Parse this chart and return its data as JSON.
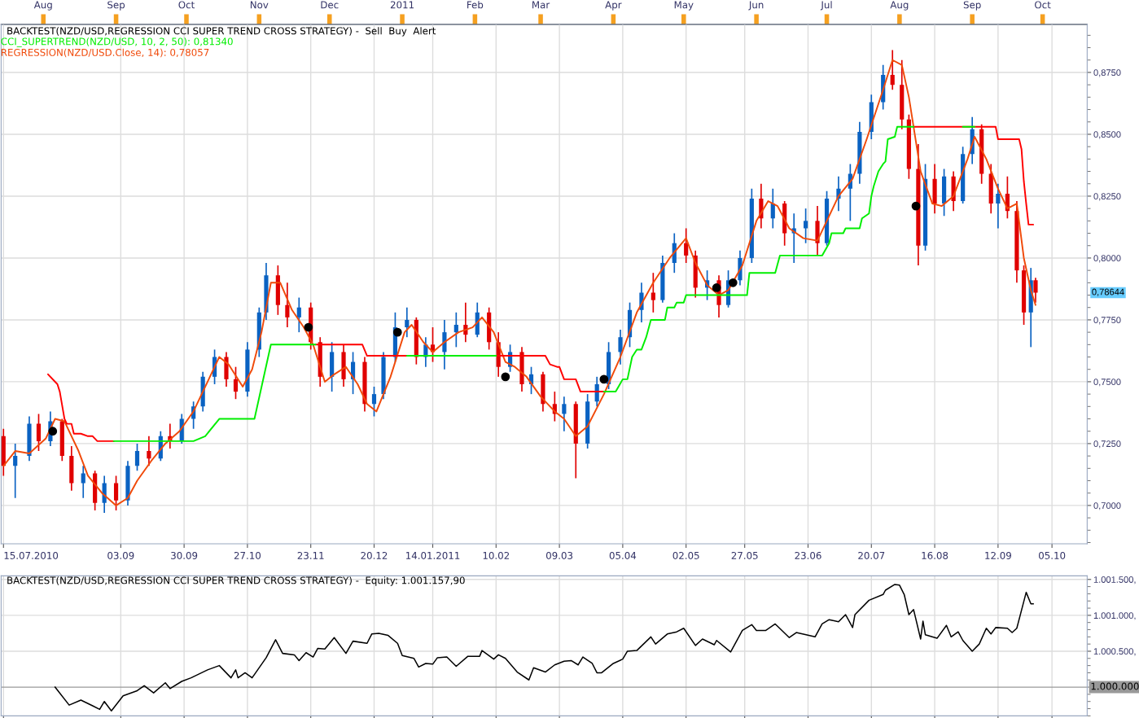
{
  "chart_data": [
    {
      "type": "candlestick",
      "title": "BACKTEST(NZD/USD,REGRESSION CCI SUPER TREND CROSS STRATEGY) -  Sell  Buy  Alert",
      "colors": [
        "#e00000",
        "#0a62c2",
        "#0a62c2",
        "#e00000",
        "#0a62c2",
        "#e00000",
        "#e00000",
        "#0a62c2",
        "#e00000",
        "#0a62c2",
        "#e00000",
        "#0a62c2",
        "#0a62c2",
        "#e00000",
        "#0a62c2",
        "#e00000",
        "#0a62c2",
        "#0a62c2",
        "#0a62c2",
        "#0a62c2",
        "#e00000",
        "#e00000",
        "#0a62c2",
        "#0a62c2",
        "#0a62c2",
        "#e00000",
        "#e00000",
        "#0a62c2",
        "#e00000",
        "#e00000",
        "#0a62c2",
        "#e00000",
        "#0a62c2",
        "#e00000",
        "#0a62c2",
        "#0a62c2",
        "#0a62c2",
        "#0a62c2",
        "#e00000",
        "#0a62c2",
        "#e00000",
        "#0a62c2",
        "#0a62c2",
        "#e00000",
        "#0a62c2",
        "#e00000",
        "#e00000",
        "#0a62c2",
        "#e00000",
        "#0a62c2",
        "#e00000",
        "#e00000",
        "#0a62c2",
        "#e00000",
        "#0a62c2",
        "#0a62c2",
        "#0a62c2",
        "#0a62c2",
        "#0a62c2",
        "#0a62c2",
        "#e00000",
        "#0a62c2",
        "#0a62c2",
        "#e00000",
        "#e00000",
        "#0a62c2",
        "#e00000",
        "#0a62c2",
        "#0a62c2",
        "#0a62c2",
        "#e00000",
        "#0a62c2",
        "#e00000",
        "#0a62c2",
        "#0a62c2",
        "#e00000",
        "#0a62c2",
        "#0a62c2",
        "#0a62c2",
        "#0a62c2",
        "#0a62c2",
        "#0a62c2",
        "#e00000",
        "#e00000",
        "#e00000",
        "#e00000",
        "#0a62c2",
        "#e00000",
        "#0a62c2",
        "#e00000",
        "#0a62c2",
        "#0a62c2",
        "#e00000",
        "#e00000",
        "#0a62c2",
        "#e00000",
        "#e00000",
        "#e00000",
        "#0a62c2",
        "#e00000"
      ],
      "x": [
        "2010-07-15",
        "2010-07-20",
        "2010-07-26",
        "2010-07-30",
        "2010-08-04",
        "2010-08-09",
        "2010-08-13",
        "2010-08-18",
        "2010-08-23",
        "2010-08-27",
        "2010-09-01",
        "2010-09-06",
        "2010-09-10",
        "2010-09-15",
        "2010-09-20",
        "2010-09-24",
        "2010-09-29",
        "2010-10-04",
        "2010-10-08",
        "2010-10-13",
        "2010-10-18",
        "2010-10-22",
        "2010-10-27",
        "2010-11-01",
        "2010-11-04",
        "2010-11-09",
        "2010-11-13",
        "2010-11-18",
        "2010-11-23",
        "2010-11-27",
        "2010-12-02",
        "2010-12-07",
        "2010-12-11",
        "2010-12-16",
        "2010-12-20",
        "2010-12-24",
        "2010-12-29",
        "2011-01-03",
        "2011-01-07",
        "2011-01-11",
        "2011-01-14",
        "2011-01-19",
        "2011-01-24",
        "2011-01-28",
        "2011-02-02",
        "2011-02-07",
        "2011-02-11",
        "2011-02-16",
        "2011-02-21",
        "2011-02-25",
        "2011-03-02",
        "2011-03-07",
        "2011-03-11",
        "2011-03-16",
        "2011-03-21",
        "2011-03-25",
        "2011-03-30",
        "2011-04-04",
        "2011-04-08",
        "2011-04-13",
        "2011-04-18",
        "2011-04-22",
        "2011-04-27",
        "2011-05-02",
        "2011-05-06",
        "2011-05-11",
        "2011-05-16",
        "2011-05-20",
        "2011-05-25",
        "2011-05-30",
        "2011-06-03",
        "2011-06-08",
        "2011-06-13",
        "2011-06-17",
        "2011-06-22",
        "2011-06-27",
        "2011-07-01",
        "2011-07-06",
        "2011-07-11",
        "2011-07-15",
        "2011-07-20",
        "2011-07-25",
        "2011-07-29",
        "2011-08-02",
        "2011-08-05",
        "2011-08-09",
        "2011-08-12",
        "2011-08-16",
        "2011-08-20",
        "2011-08-24",
        "2011-08-28",
        "2011-09-01",
        "2011-09-05",
        "2011-09-09",
        "2011-09-12",
        "2011-09-16",
        "2011-09-20",
        "2011-09-23",
        "2011-09-26",
        "2011-09-28"
      ],
      "ohlc": [
        [
          0.728,
          0.731,
          0.712,
          0.716
        ],
        [
          0.716,
          0.725,
          0.703,
          0.72
        ],
        [
          0.72,
          0.736,
          0.718,
          0.733
        ],
        [
          0.733,
          0.737,
          0.722,
          0.726
        ],
        [
          0.726,
          0.738,
          0.724,
          0.734
        ],
        [
          0.734,
          0.735,
          0.718,
          0.72
        ],
        [
          0.72,
          0.724,
          0.706,
          0.709
        ],
        [
          0.709,
          0.716,
          0.703,
          0.713
        ],
        [
          0.713,
          0.714,
          0.698,
          0.701
        ],
        [
          0.701,
          0.712,
          0.697,
          0.709
        ],
        [
          0.709,
          0.712,
          0.698,
          0.702
        ],
        [
          0.702,
          0.718,
          0.7,
          0.716
        ],
        [
          0.716,
          0.725,
          0.714,
          0.722
        ],
        [
          0.722,
          0.728,
          0.716,
          0.719
        ],
        [
          0.719,
          0.73,
          0.718,
          0.728
        ],
        [
          0.728,
          0.733,
          0.723,
          0.726
        ],
        [
          0.726,
          0.737,
          0.725,
          0.735
        ],
        [
          0.735,
          0.742,
          0.731,
          0.74
        ],
        [
          0.74,
          0.754,
          0.738,
          0.752
        ],
        [
          0.752,
          0.763,
          0.749,
          0.76
        ],
        [
          0.76,
          0.762,
          0.748,
          0.751
        ],
        [
          0.751,
          0.756,
          0.743,
          0.746
        ],
        [
          0.746,
          0.766,
          0.744,
          0.763
        ],
        [
          0.763,
          0.78,
          0.76,
          0.778
        ],
        [
          0.778,
          0.798,
          0.775,
          0.793
        ],
        [
          0.793,
          0.797,
          0.777,
          0.781
        ],
        [
          0.781,
          0.79,
          0.772,
          0.776
        ],
        [
          0.776,
          0.784,
          0.77,
          0.78
        ],
        [
          0.78,
          0.782,
          0.763,
          0.766
        ],
        [
          0.766,
          0.768,
          0.748,
          0.752
        ],
        [
          0.752,
          0.766,
          0.746,
          0.762
        ],
        [
          0.762,
          0.765,
          0.748,
          0.751
        ],
        [
          0.751,
          0.762,
          0.745,
          0.758
        ],
        [
          0.758,
          0.76,
          0.738,
          0.741
        ],
        [
          0.741,
          0.748,
          0.736,
          0.745
        ],
        [
          0.745,
          0.762,
          0.743,
          0.76
        ],
        [
          0.76,
          0.778,
          0.758,
          0.772
        ],
        [
          0.772,
          0.78,
          0.768,
          0.775
        ],
        [
          0.775,
          0.776,
          0.757,
          0.76
        ],
        [
          0.76,
          0.768,
          0.756,
          0.765
        ],
        [
          0.765,
          0.772,
          0.758,
          0.762
        ],
        [
          0.762,
          0.775,
          0.755,
          0.77
        ],
        [
          0.77,
          0.778,
          0.764,
          0.773
        ],
        [
          0.773,
          0.782,
          0.766,
          0.769
        ],
        [
          0.769,
          0.782,
          0.768,
          0.778
        ],
        [
          0.778,
          0.78,
          0.763,
          0.766
        ],
        [
          0.766,
          0.77,
          0.752,
          0.756
        ],
        [
          0.756,
          0.765,
          0.754,
          0.762
        ],
        [
          0.762,
          0.764,
          0.746,
          0.749
        ],
        [
          0.749,
          0.756,
          0.745,
          0.753
        ],
        [
          0.753,
          0.754,
          0.738,
          0.741
        ],
        [
          0.741,
          0.746,
          0.734,
          0.737
        ],
        [
          0.737,
          0.744,
          0.73,
          0.741
        ],
        [
          0.741,
          0.742,
          0.711,
          0.725
        ],
        [
          0.725,
          0.745,
          0.723,
          0.742
        ],
        [
          0.742,
          0.752,
          0.74,
          0.749
        ],
        [
          0.749,
          0.766,
          0.747,
          0.762
        ],
        [
          0.762,
          0.771,
          0.757,
          0.768
        ],
        [
          0.768,
          0.782,
          0.764,
          0.779
        ],
        [
          0.779,
          0.79,
          0.774,
          0.786
        ],
        [
          0.786,
          0.794,
          0.778,
          0.783
        ],
        [
          0.783,
          0.801,
          0.782,
          0.798
        ],
        [
          0.798,
          0.81,
          0.794,
          0.806
        ],
        [
          0.806,
          0.812,
          0.798,
          0.801
        ],
        [
          0.801,
          0.803,
          0.784,
          0.788
        ],
        [
          0.788,
          0.795,
          0.783,
          0.791
        ],
        [
          0.791,
          0.793,
          0.776,
          0.781
        ],
        [
          0.781,
          0.795,
          0.78,
          0.791
        ],
        [
          0.791,
          0.803,
          0.789,
          0.8
        ],
        [
          0.8,
          0.828,
          0.798,
          0.824
        ],
        [
          0.824,
          0.83,
          0.812,
          0.816
        ],
        [
          0.816,
          0.828,
          0.812,
          0.822
        ],
        [
          0.822,
          0.823,
          0.805,
          0.81
        ],
        [
          0.81,
          0.818,
          0.798,
          0.812
        ],
        [
          0.812,
          0.82,
          0.806,
          0.815
        ],
        [
          0.815,
          0.821,
          0.801,
          0.806
        ],
        [
          0.806,
          0.827,
          0.805,
          0.824
        ],
        [
          0.824,
          0.833,
          0.819,
          0.828
        ],
        [
          0.828,
          0.838,
          0.815,
          0.834
        ],
        [
          0.834,
          0.855,
          0.83,
          0.851
        ],
        [
          0.851,
          0.866,
          0.848,
          0.863
        ],
        [
          0.863,
          0.878,
          0.86,
          0.874
        ],
        [
          0.874,
          0.884,
          0.868,
          0.87
        ],
        [
          0.87,
          0.88,
          0.852,
          0.856
        ],
        [
          0.856,
          0.858,
          0.832,
          0.836
        ],
        [
          0.836,
          0.846,
          0.797,
          0.805
        ],
        [
          0.805,
          0.838,
          0.803,
          0.832
        ],
        [
          0.832,
          0.838,
          0.818,
          0.822
        ],
        [
          0.822,
          0.836,
          0.817,
          0.833
        ],
        [
          0.833,
          0.835,
          0.819,
          0.823
        ],
        [
          0.823,
          0.845,
          0.822,
          0.842
        ],
        [
          0.842,
          0.857,
          0.838,
          0.852
        ],
        [
          0.852,
          0.854,
          0.83,
          0.834
        ],
        [
          0.834,
          0.838,
          0.818,
          0.822
        ],
        [
          0.822,
          0.83,
          0.812,
          0.826
        ],
        [
          0.826,
          0.833,
          0.816,
          0.819
        ],
        [
          0.819,
          0.823,
          0.79,
          0.795
        ],
        [
          0.795,
          0.797,
          0.773,
          0.778
        ],
        [
          0.778,
          0.796,
          0.764,
          0.791
        ],
        [
          0.791,
          0.792,
          0.782,
          0.786
        ]
      ],
      "series": [
        {
          "name": "CCI_SUPERTREND(NZD/USD, 10, 2, 50): 0,81340",
          "type": "line",
          "color": "#00ee00",
          "x": [
            "2010-08-31",
            "2010-10-04",
            "2010-10-09",
            "2010-10-15",
            "2010-10-30",
            "2010-11-06",
            "2010-11-25",
            "2010-12-15",
            "2011-01-03",
            "2011-02-10",
            "2011-03-15",
            "2011-03-28",
            "2011-04-02",
            "2011-04-05",
            "2011-04-07",
            "2011-04-09",
            "2011-04-11",
            "2011-04-13",
            "2011-04-15",
            "2011-04-17",
            "2011-04-23",
            "2011-04-24",
            "2011-04-27",
            "2011-04-28",
            "2011-05-01",
            "2011-05-02",
            "2011-05-28",
            "2011-05-29",
            "2011-06-05",
            "2011-06-09",
            "2011-06-11",
            "2011-06-29",
            "2011-07-02",
            "2011-07-03",
            "2011-07-08",
            "2011-07-09",
            "2011-07-15",
            "2011-07-16",
            "2011-07-19",
            "2011-07-20",
            "2011-07-21",
            "2011-07-23",
            "2011-07-25",
            "2011-07-26",
            "2011-07-27",
            "2011-07-30",
            "2011-07-31",
            "2011-08-07",
            "2011-08-18",
            "2011-08-28",
            "2011-09-02"
          ],
          "values": [
            0.726,
            0.726,
            0.728,
            0.735,
            0.735,
            0.765,
            0.765,
            null,
            0.7605,
            0.7605,
            null,
            0.746,
            0.746,
            0.751,
            0.751,
            0.76,
            0.763,
            0.763,
            0.768,
            0.775,
            0.775,
            0.78,
            0.78,
            0.782,
            0.782,
            0.785,
            0.785,
            0.794,
            0.794,
            0.794,
            0.801,
            0.801,
            0.806,
            0.81,
            0.81,
            0.812,
            0.812,
            0.816,
            0.818,
            0.825,
            0.829,
            0.835,
            0.838,
            0.839,
            0.848,
            0.849,
            0.853,
            0.853,
            null,
            0.853,
            0.853
          ]
        },
        {
          "type": "line",
          "color": "#ff0000",
          "x": [
            "2010-08-03",
            "2010-08-07",
            "2010-08-08",
            "2010-08-10",
            "2010-08-11",
            "2010-08-13",
            "2010-08-14",
            "2010-08-17",
            "2010-08-20",
            "2010-08-22",
            "2010-08-24",
            "2010-08-31",
            "2010-09-15",
            "2010-11-25",
            "2010-12-15",
            "2010-12-17",
            "2011-03-03",
            "2011-03-05",
            "2011-03-08",
            "2011-03-09",
            "2011-03-11",
            "2011-03-16",
            "2011-03-18",
            "2011-03-28",
            "2011-04-15",
            "2011-08-07",
            "2011-09-11",
            "2011-09-12",
            "2011-09-21",
            "2011-09-22",
            "2011-09-23",
            "2011-09-24",
            "2011-09-25",
            "2011-09-27"
          ],
          "values": [
            0.753,
            0.749,
            0.746,
            0.735,
            0.733,
            0.733,
            0.729,
            0.729,
            0.728,
            0.728,
            0.726,
            0.726,
            null,
            0.765,
            0.765,
            0.7605,
            0.7605,
            0.757,
            0.756,
            0.756,
            0.751,
            0.751,
            0.746,
            0.746,
            null,
            0.853,
            0.853,
            0.848,
            0.848,
            0.844,
            0.831,
            0.822,
            0.8135,
            0.8135
          ]
        },
        {
          "name": "REGRESSION(NZD/USD.Close, 14): 0,78057",
          "type": "line",
          "color": "#f04a0a",
          "x": [
            "2010-07-15",
            "2010-07-20",
            "2010-07-26",
            "2010-08-02",
            "2010-08-06",
            "2010-08-10",
            "2010-08-16",
            "2010-08-20",
            "2010-08-26",
            "2010-09-01",
            "2010-09-06",
            "2010-09-10",
            "2010-09-16",
            "2010-09-22",
            "2010-09-28",
            "2010-10-04",
            "2010-10-11",
            "2010-10-15",
            "2010-10-19",
            "2010-10-25",
            "2010-10-29",
            "2010-11-02",
            "2010-11-06",
            "2010-11-10",
            "2010-11-15",
            "2010-11-20",
            "2010-11-24",
            "2010-11-29",
            "2010-12-03",
            "2010-12-08",
            "2010-12-13",
            "2010-12-17",
            "2010-12-21",
            "2010-12-27",
            "2011-01-02",
            "2011-01-05",
            "2011-01-10",
            "2011-01-14",
            "2011-01-19",
            "2011-01-25",
            "2011-01-31",
            "2011-02-04",
            "2011-02-09",
            "2011-02-14",
            "2011-02-18",
            "2011-02-23",
            "2011-03-01",
            "2011-03-07",
            "2011-03-11",
            "2011-03-16",
            "2011-03-21",
            "2011-03-28",
            "2011-04-04",
            "2011-04-11",
            "2011-04-18",
            "2011-04-25",
            "2011-05-02",
            "2011-05-06",
            "2011-05-11",
            "2011-05-16",
            "2011-05-20",
            "2011-05-26",
            "2011-06-01",
            "2011-06-06",
            "2011-06-10",
            "2011-06-15",
            "2011-06-21",
            "2011-06-27",
            "2011-07-01",
            "2011-07-06",
            "2011-07-12",
            "2011-07-18",
            "2011-07-25",
            "2011-07-29",
            "2011-08-02",
            "2011-08-05",
            "2011-08-10",
            "2011-08-15",
            "2011-08-19",
            "2011-08-24",
            "2011-08-30",
            "2011-09-02",
            "2011-09-07",
            "2011-09-12",
            "2011-09-16",
            "2011-09-20",
            "2011-09-23",
            "2011-09-26",
            "2011-09-28"
          ],
          "values": [
            0.716,
            0.722,
            0.721,
            0.727,
            0.735,
            0.734,
            0.722,
            0.712,
            0.705,
            0.7,
            0.703,
            0.71,
            0.718,
            0.725,
            0.73,
            0.738,
            0.752,
            0.76,
            0.757,
            0.748,
            0.755,
            0.77,
            0.79,
            0.79,
            0.779,
            0.772,
            0.765,
            0.75,
            0.753,
            0.756,
            0.749,
            0.741,
            0.738,
            0.752,
            0.77,
            0.773,
            0.766,
            0.762,
            0.766,
            0.77,
            0.772,
            0.776,
            0.77,
            0.758,
            0.756,
            0.752,
            0.744,
            0.738,
            0.735,
            0.728,
            0.732,
            0.745,
            0.76,
            0.778,
            0.79,
            0.8,
            0.808,
            0.798,
            0.789,
            0.785,
            0.787,
            0.797,
            0.815,
            0.823,
            0.821,
            0.812,
            0.808,
            0.807,
            0.815,
            0.825,
            0.832,
            0.848,
            0.868,
            0.88,
            0.878,
            0.865,
            0.835,
            0.822,
            0.821,
            0.825,
            0.84,
            0.849,
            0.84,
            0.828,
            0.82,
            0.822,
            0.8,
            0.787,
            0.781
          ]
        },
        {
          "type": "scatter",
          "color": "#000000",
          "marker": "circle",
          "x": [
            "2010-08-05",
            "2010-11-22",
            "2010-12-30",
            "2011-02-14",
            "2011-03-28",
            "2011-05-15",
            "2011-05-22",
            "2011-08-08"
          ],
          "values": [
            0.73,
            0.772,
            0.77,
            0.752,
            0.751,
            0.788,
            0.79,
            0.821
          ]
        }
      ],
      "xlim": [
        "2010-07-14",
        "2011-10-20"
      ],
      "xticks": [
        {
          "value": "2010-07-15",
          "label": "15.07.2010"
        },
        {
          "value": "2010-09-03",
          "label": "03.09"
        },
        {
          "value": "2010-09-30",
          "label": "30.09"
        },
        {
          "value": "2010-10-27",
          "label": "27.10"
        },
        {
          "value": "2010-11-23",
          "label": "23.11"
        },
        {
          "value": "2010-12-20",
          "label": "20.12"
        },
        {
          "value": "2011-01-14",
          "label": "14.01.2011"
        },
        {
          "value": "2011-02-10",
          "label": "10.02"
        },
        {
          "value": "2011-03-09",
          "label": "09.03"
        },
        {
          "value": "2011-04-05",
          "label": "05.04"
        },
        {
          "value": "2011-05-02",
          "label": "02.05"
        },
        {
          "value": "2011-05-27",
          "label": "27.05"
        },
        {
          "value": "2011-06-23",
          "label": "23.06"
        },
        {
          "value": "2011-07-20",
          "label": "20.07"
        },
        {
          "value": "2011-08-16",
          "label": "16.08"
        },
        {
          "value": "2011-09-12",
          "label": "12.09"
        },
        {
          "value": "2011-10-05",
          "label": "05.10"
        }
      ],
      "x2ticks": [
        {
          "value": "2010-08-01",
          "label": "Aug"
        },
        {
          "value": "2010-09-01",
          "label": "Sep"
        },
        {
          "value": "2010-10-01",
          "label": "Oct"
        },
        {
          "value": "2010-11-01",
          "label": "Nov"
        },
        {
          "value": "2010-12-01",
          "label": "Dec"
        },
        {
          "value": "2011-01-01",
          "label": "2011"
        },
        {
          "value": "2011-02-01",
          "label": "Feb"
        },
        {
          "value": "2011-03-01",
          "label": "Mar"
        },
        {
          "value": "2011-04-01",
          "label": "Apr"
        },
        {
          "value": "2011-05-01",
          "label": "May"
        },
        {
          "value": "2011-06-01",
          "label": "Jun"
        },
        {
          "value": "2011-07-01",
          "label": "Jul"
        },
        {
          "value": "2011-08-01",
          "label": "Aug"
        },
        {
          "value": "2011-09-01",
          "label": "Sep"
        },
        {
          "value": "2011-10-01",
          "label": "Oct"
        }
      ],
      "ylim": [
        0.6845,
        0.8944
      ],
      "yticks": [
        {
          "value": 0.7,
          "label": "0,7000"
        },
        {
          "value": 0.725,
          "label": "0,7250"
        },
        {
          "value": 0.75,
          "label": "0,7500"
        },
        {
          "value": 0.775,
          "label": "0,7750"
        },
        {
          "value": 0.8,
          "label": "0,8000"
        },
        {
          "value": 0.825,
          "label": "0,8250"
        },
        {
          "value": 0.85,
          "label": "0,8500"
        },
        {
          "value": 0.875,
          "label": "0,8750"
        }
      ],
      "x2lim": [
        "2010-07-14",
        "2011-10-20"
      ],
      "annotations": [
        "0,78644"
      ],
      "grid": true,
      "legend": "top left"
    },
    {
      "type": "line",
      "title": "BACKTEST(NZD/USD,REGRESSION CCI SUPER TREND CROSS STRATEGY) -  Equity: 1.001.157,90",
      "color": "#000000",
      "x": [
        "2010-08-06",
        "2010-08-12",
        "2010-08-17",
        "2010-08-22",
        "2010-08-25",
        "2010-08-27",
        "2010-08-30",
        "2010-09-04",
        "2010-09-10",
        "2010-09-13",
        "2010-09-17",
        "2010-09-22",
        "2010-09-24",
        "2010-09-29",
        "2010-10-03",
        "2010-10-10",
        "2010-10-15",
        "2010-10-20",
        "2010-10-22",
        "2010-10-23",
        "2010-10-26",
        "2010-10-29",
        "2010-11-04",
        "2010-11-08",
        "2010-11-11",
        "2010-11-16",
        "2010-11-18",
        "2010-11-21",
        "2010-11-24",
        "2010-11-26",
        "2010-11-29",
        "2010-12-03",
        "2010-12-08",
        "2010-12-11",
        "2010-12-17",
        "2010-12-19",
        "2010-12-22",
        "2010-12-26",
        "2010-12-30",
        "2011-01-01",
        "2011-01-06",
        "2011-01-08",
        "2011-01-11",
        "2011-01-14",
        "2011-01-16",
        "2011-01-20",
        "2011-01-24",
        "2011-01-29",
        "2011-02-03",
        "2011-02-04",
        "2011-02-09",
        "2011-02-11",
        "2011-02-14",
        "2011-02-19",
        "2011-02-24",
        "2011-02-26",
        "2011-03-03",
        "2011-03-07",
        "2011-03-11",
        "2011-03-14",
        "2011-03-17",
        "2011-03-19",
        "2011-03-23",
        "2011-03-25",
        "2011-03-27",
        "2011-04-01",
        "2011-04-05",
        "2011-04-07",
        "2011-04-11",
        "2011-04-17",
        "2011-04-19",
        "2011-04-24",
        "2011-04-28",
        "2011-05-01",
        "2011-05-06",
        "2011-05-09",
        "2011-05-14",
        "2011-05-15",
        "2011-05-21",
        "2011-05-26",
        "2011-05-30",
        "2011-06-01",
        "2011-06-05",
        "2011-06-09",
        "2011-06-15",
        "2011-06-18",
        "2011-06-26",
        "2011-06-29",
        "2011-07-02",
        "2011-07-06",
        "2011-07-09",
        "2011-07-12",
        "2011-07-13",
        "2011-07-19",
        "2011-07-25",
        "2011-07-26",
        "2011-07-30",
        "2011-08-01",
        "2011-08-03",
        "2011-08-05",
        "2011-08-07",
        "2011-08-10",
        "2011-08-11",
        "2011-08-12",
        "2011-08-17",
        "2011-08-21",
        "2011-08-23",
        "2011-08-26",
        "2011-08-28",
        "2011-09-01",
        "2011-09-04",
        "2011-09-07",
        "2011-09-09",
        "2011-09-11",
        "2011-09-16",
        "2011-09-18",
        "2011-09-20",
        "2011-09-24",
        "2011-09-26",
        "2011-09-27"
      ],
      "values": [
        1000000,
        999750,
        999820,
        999740,
        999690,
        999800,
        999670,
        999880,
        999950,
        1000020,
        999920,
        1000060,
        999980,
        1000080,
        1000130,
        1000240,
        1000300,
        1000130,
        1000240,
        1000130,
        1000200,
        1000130,
        1000410,
        1000660,
        1000470,
        1000450,
        1000370,
        1000480,
        1000420,
        1000540,
        1000530,
        1000690,
        1000470,
        1000640,
        1000610,
        1000740,
        1000750,
        1000720,
        1000610,
        1000440,
        1000400,
        1000280,
        1000330,
        1000320,
        1000410,
        1000420,
        1000290,
        1000430,
        1000430,
        1000510,
        1000390,
        1000450,
        1000400,
        1000210,
        1000100,
        1000270,
        1000210,
        1000310,
        1000360,
        1000370,
        1000310,
        1000420,
        1000330,
        1000200,
        1000200,
        1000330,
        1000390,
        1000500,
        1000510,
        1000700,
        1000600,
        1000740,
        1000770,
        1000820,
        1000580,
        1000670,
        1000590,
        1000650,
        1000490,
        1000790,
        1000870,
        1000790,
        1000790,
        1000880,
        1000690,
        1000760,
        1000700,
        1000880,
        1000940,
        1000910,
        1001010,
        1000830,
        1001010,
        1001210,
        1001290,
        1001350,
        1001430,
        1001420,
        1001290,
        1001010,
        1001080,
        1000670,
        1000920,
        1000730,
        1000680,
        1000860,
        1000700,
        1000770,
        1000650,
        1000500,
        1000600,
        1000820,
        1000740,
        1000830,
        1000820,
        1000760,
        1000820,
        1001320,
        1001160,
        1001160
      ],
      "xlim": [
        "2010-07-14",
        "2011-10-20"
      ],
      "xticks": [
        {
          "value": "2010-07-15",
          "label": null
        },
        {
          "value": "2010-09-03",
          "label": null
        },
        {
          "value": "2010-09-30",
          "label": null
        },
        {
          "value": "2010-10-27",
          "label": null
        },
        {
          "value": "2010-11-23",
          "label": null
        },
        {
          "value": "2010-12-20",
          "label": null
        },
        {
          "value": "2011-01-14",
          "label": null
        },
        {
          "value": "2011-02-10",
          "label": null
        },
        {
          "value": "2011-03-09",
          "label": null
        },
        {
          "value": "2011-04-05",
          "label": null
        },
        {
          "value": "2011-05-02",
          "label": null
        },
        {
          "value": "2011-05-27",
          "label": null
        },
        {
          "value": "2011-06-23",
          "label": null
        },
        {
          "value": "2011-07-20",
          "label": null
        },
        {
          "value": "2011-08-16",
          "label": null
        },
        {
          "value": "2011-09-12",
          "label": null
        },
        {
          "value": "2011-10-05",
          "label": null
        }
      ],
      "ylim": [
        999600,
        1001550
      ],
      "yticks": [
        {
          "value": 1000500,
          "label": "1.000.500,"
        },
        {
          "value": 1001000,
          "label": "1.001.000,"
        },
        {
          "value": 1001500,
          "label": "1.001.500,"
        }
      ],
      "ref_lines": [
        {
          "axis": "y",
          "value": 1000000,
          "label": "1.000.000",
          "color": "#999999",
          "line_style": "solid"
        }
      ],
      "grid": true,
      "tick_labels": "y"
    }
  ]
}
